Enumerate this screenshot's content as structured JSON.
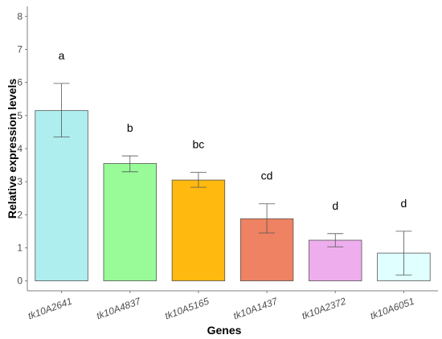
{
  "chart_data": {
    "type": "bar",
    "xlabel": "Genes",
    "ylabel": "Relative expression levels",
    "ylim": [
      -0.3,
      8.3
    ],
    "yticks": [
      "0",
      "1",
      "2",
      "3",
      "4",
      "5",
      "6",
      "7",
      "8"
    ],
    "categories": [
      "tk10A2641",
      "tk10A4837",
      "tk10A5165",
      "tk10A1437",
      "tk10A2372",
      "tk10A6051"
    ],
    "values": [
      5.15,
      3.55,
      3.05,
      1.88,
      1.23,
      0.84
    ],
    "error_low": [
      4.35,
      3.3,
      2.83,
      1.45,
      1.03,
      0.18
    ],
    "error_high": [
      5.97,
      3.78,
      3.28,
      2.33,
      1.43,
      1.5
    ],
    "significance": [
      "a",
      "b",
      "bc",
      "cd",
      "d",
      "d"
    ],
    "colors": [
      "#aeeeee",
      "#98fb98",
      "#ffb90f",
      "#ee8262",
      "#eeaeee",
      "#e0ffff"
    ],
    "grid": false
  }
}
